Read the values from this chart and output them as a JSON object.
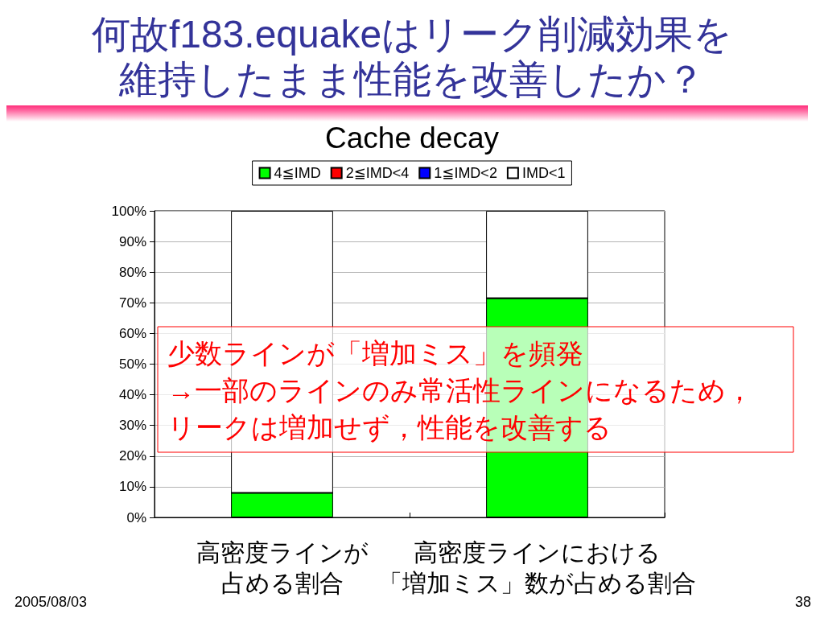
{
  "chart_data": {
    "type": "bar",
    "title": "何故f183.equakeはリーク削減効果を維持したまま性能を改善したか？",
    "subtitle": "Cache decay",
    "categories": [
      "高密度ラインが占める割合",
      "高密度ラインにおける「増加ミス」数が占める割合"
    ],
    "series": [
      {
        "name": "4≦IMD",
        "color": "#00ff00",
        "values": [
          8,
          71.5
        ]
      },
      {
        "name": "2≦IMD<4",
        "color": "#ff0000",
        "values": [
          0,
          0
        ]
      },
      {
        "name": "1≦IMD<2",
        "color": "#0000ff",
        "values": [
          0,
          0
        ]
      },
      {
        "name": "IMD<1",
        "color": "#ffffff",
        "values": [
          92,
          28.5
        ]
      }
    ],
    "stacked": true,
    "ylim": [
      0,
      100
    ],
    "yticks": [
      {
        "value": 0,
        "label": "0%"
      },
      {
        "value": 10,
        "label": "10%"
      },
      {
        "value": 20,
        "label": "20%"
      },
      {
        "value": 30,
        "label": "30%"
      },
      {
        "value": 40,
        "label": "40%"
      },
      {
        "value": 50,
        "label": "50%"
      },
      {
        "value": 60,
        "label": "60%"
      },
      {
        "value": 70,
        "label": "70%"
      },
      {
        "value": 80,
        "label": "80%"
      },
      {
        "value": 90,
        "label": "90%"
      },
      {
        "value": 100,
        "label": "100%"
      }
    ],
    "grid": "y",
    "legend": "top",
    "annotations": [
      "少数ラインが「増加ミス」を頻発",
      "→一部のラインのみ常活性ラインになるため，リークは増加せず，性能を改善する",
      "2005/08/03",
      "38"
    ]
  }
}
